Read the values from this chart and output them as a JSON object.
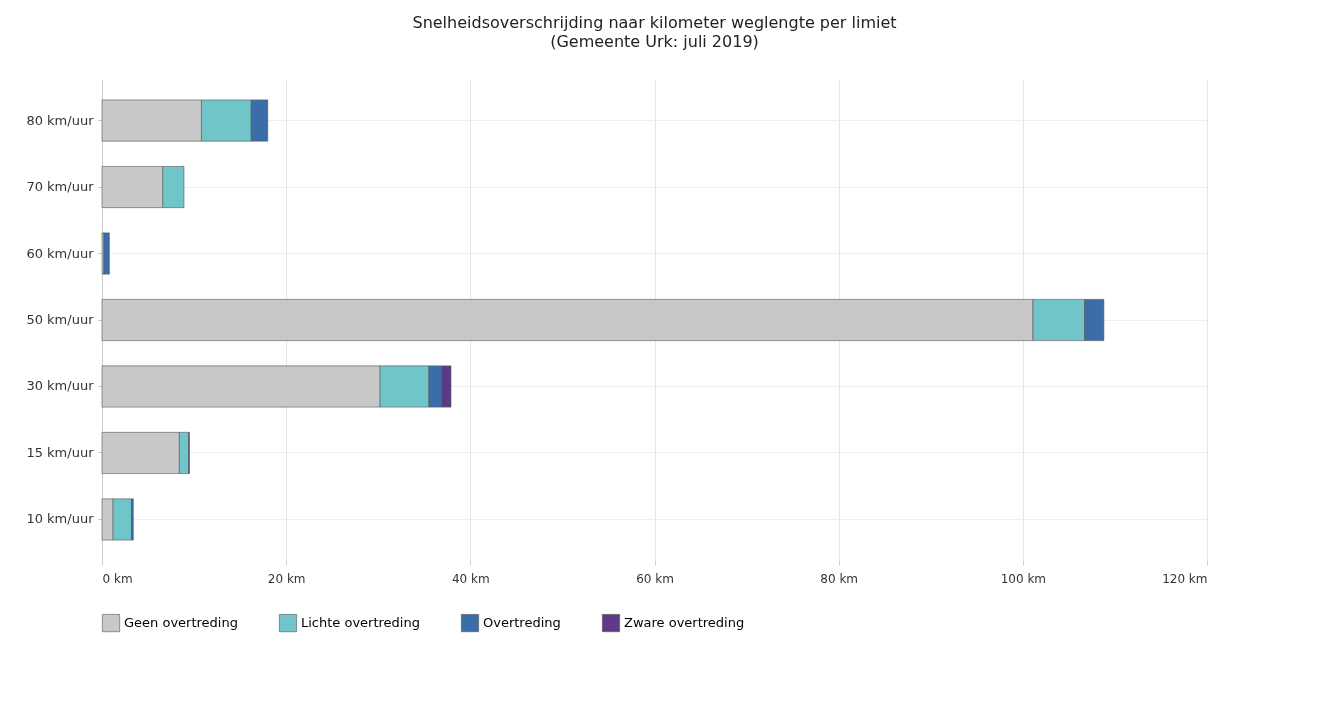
{
  "chart_data": {
    "type": "bar",
    "orientation": "horizontal",
    "stacked": true,
    "title": "Snelheidsoverschrijding naar kilometer weglengte per limiet",
    "subtitle": "(Gemeente Urk: juli 2019)",
    "categories": [
      "80 km/uur",
      "70 km/uur",
      "60 km/uur",
      "50 km/uur",
      "30 km/uur",
      "15 km/uur",
      "10 km/uur"
    ],
    "series": [
      {
        "name": "Geen overtreding",
        "color": "#c8c8c8",
        "values": [
          10.8,
          6.6,
          0.2,
          101.1,
          30.2,
          8.4,
          1.2
        ]
      },
      {
        "name": "Lichte overtreding",
        "color": "#70c5c8",
        "values": [
          5.4,
          2.3,
          null,
          5.6,
          5.3,
          1.0,
          2.0
        ]
      },
      {
        "name": "Overtreding",
        "color": "#3b6ea8",
        "values": [
          1.8,
          null,
          0.6,
          2.1,
          1.4,
          0.1,
          0.2
        ]
      },
      {
        "name": "Zware overtreding",
        "color": "#5c3a85",
        "values": [
          null,
          null,
          null,
          null,
          1.0,
          null,
          null
        ]
      }
    ],
    "xlim": [
      0,
      120
    ],
    "xticks": [
      {
        "value": 0,
        "label": "0 km"
      },
      {
        "value": 20,
        "label": "20 km"
      },
      {
        "value": 40,
        "label": "40 km"
      },
      {
        "value": 60,
        "label": "60 km"
      },
      {
        "value": 80,
        "label": "80 km"
      },
      {
        "value": 100,
        "label": "100 km"
      },
      {
        "value": 120,
        "label": "120 km"
      }
    ],
    "grid": true,
    "legend": "bottom"
  }
}
